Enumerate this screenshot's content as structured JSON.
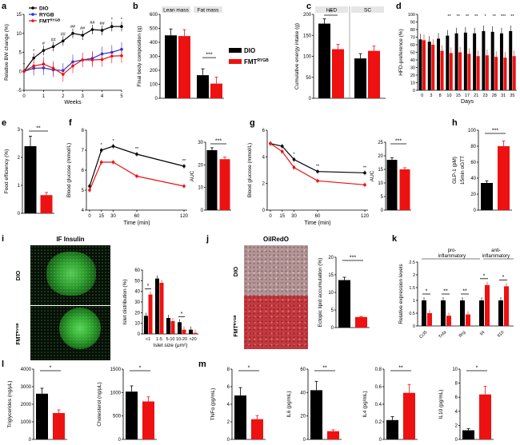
{
  "colors": {
    "dio": "#000000",
    "rygb": "#2233dd",
    "fmt": "#ee1111",
    "micro_dark": "#0a150a",
    "micro_green": "#3ec93e",
    "oil_bg": "#b0898a",
    "oil_red": "#b8252c"
  },
  "panel_letters": [
    "a",
    "b",
    "c",
    "d",
    "e",
    "f",
    "g",
    "h",
    "i",
    "j",
    "k",
    "l",
    "m"
  ],
  "sup": {
    "fmt": "RYGB"
  },
  "a": {
    "legend": [
      "DIO",
      "RYGB",
      "FMT"
    ],
    "ylabel": "Relative BW change (%)",
    "xlabel": "Weeks",
    "chart_data": {
      "type": "line",
      "x": [
        0,
        0.5,
        1,
        1.5,
        2,
        2.5,
        3,
        3.5,
        4,
        4.5,
        5
      ],
      "xlim": [
        0,
        5
      ],
      "ylim": [
        -5,
        15
      ],
      "yticks": [
        -5,
        0,
        5,
        10,
        15
      ],
      "xticks": [
        0,
        1,
        2,
        3,
        4,
        5
      ],
      "series": [
        {
          "name": "DIO",
          "values": [
            0,
            3.5,
            5.5,
            6.5,
            8,
            10,
            9.5,
            11,
            10.8,
            11.8,
            11.8
          ]
        },
        {
          "name": "RYGB",
          "values": [
            0,
            0.8,
            0.9,
            0.4,
            0.2,
            2.5,
            3.0,
            3.4,
            4.6,
            5.0,
            5.8
          ]
        },
        {
          "name": "FMT",
          "values": [
            0,
            1.4,
            1.9,
            0.8,
            -0.8,
            1.4,
            3.0,
            3.0,
            3.1,
            4.0,
            4.1
          ]
        }
      ],
      "annotations": [
        "*",
        "*",
        "#",
        "##",
        "##",
        "##",
        "##",
        "##",
        "##",
        "*",
        "*"
      ]
    }
  },
  "b": {
    "ylabel": "Final body composition (g)",
    "group_labels": [
      "Lean mass",
      "Fat mass"
    ],
    "legend": [
      "DIO",
      "FMT"
    ],
    "sig": "***",
    "chart_data": {
      "type": "bar",
      "categories": [
        "Lean mass",
        "Fat mass"
      ],
      "ylim": [
        0,
        600
      ],
      "yticks": [
        0,
        100,
        200,
        300,
        400,
        500,
        600
      ],
      "series": [
        {
          "name": "DIO",
          "values": [
            450,
            165
          ]
        },
        {
          "name": "FMT",
          "values": [
            445,
            105
          ]
        }
      ]
    }
  },
  "c": {
    "ylabel": "Cumulative energy intake (g)",
    "group_labels": [
      "HFD",
      "SC"
    ],
    "sig": "**",
    "chart_data": {
      "type": "bar",
      "categories": [
        "HFD",
        "SC"
      ],
      "ylim": [
        0,
        200
      ],
      "yticks": [
        0,
        50,
        100,
        150,
        200
      ],
      "series": [
        {
          "name": "DIO",
          "values": [
            178,
            95
          ]
        },
        {
          "name": "FMT",
          "values": [
            117,
            113
          ]
        }
      ]
    }
  },
  "d": {
    "ylabel": "HFD-preference (%)",
    "xlabel": "Days",
    "chart_data": {
      "type": "bar",
      "categories": [
        "0",
        "3",
        "8",
        "10",
        "15",
        "17",
        "21",
        "23",
        "28",
        "31",
        "35"
      ],
      "ylim": [
        0,
        100
      ],
      "yticks": [
        0,
        10,
        20,
        30,
        40,
        50,
        60,
        70,
        80,
        90,
        100
      ],
      "series": [
        {
          "name": "DIO",
          "values": [
            67,
            64,
            68,
            72,
            75,
            76,
            75,
            78,
            77,
            75,
            78
          ]
        },
        {
          "name": "FMT",
          "values": [
            66,
            60,
            52,
            49,
            50,
            48,
            45,
            46,
            44,
            43,
            45
          ]
        }
      ],
      "annotations": [
        "",
        "",
        "",
        "**",
        "**",
        "**",
        "**",
        "*",
        "**",
        "***",
        "**"
      ]
    }
  },
  "e": {
    "ylabel": "Food efficiency (%)",
    "sig": "**",
    "chart_data": {
      "type": "bar",
      "categories": [
        "DIO",
        "FMT"
      ],
      "ylim": [
        0,
        3
      ],
      "yticks": [
        0,
        1,
        2,
        3
      ],
      "values": [
        2.4,
        0.65
      ]
    }
  },
  "f": {
    "ylabel": "Blood glucose (mmol/L)",
    "xlabel": "Time (min)",
    "auc_label": "AUC",
    "auc_sig": "***",
    "chart_data": {
      "type": "line",
      "x": [
        0,
        15,
        30,
        60,
        120
      ],
      "xticks": [
        0,
        15,
        30,
        60,
        120
      ],
      "ylim": [
        4,
        8
      ],
      "yticks": [
        4,
        5,
        6,
        7,
        8
      ],
      "series": [
        {
          "name": "DIO",
          "values": [
            5.2,
            7.0,
            7.2,
            6.8,
            6.2
          ]
        },
        {
          "name": "FMT",
          "values": [
            5.0,
            6.4,
            6.4,
            5.7,
            5.2
          ]
        }
      ],
      "annotations": [
        "",
        "*",
        "*",
        "**",
        "**"
      ],
      "auc": {
        "ylim": [
          0,
          30
        ],
        "yticks": [
          0,
          10,
          20,
          30
        ],
        "values": [
          26.5,
          22.5
        ]
      }
    }
  },
  "g": {
    "ylabel": "Blood glucose (mmol/L)",
    "xlabel": "Time (min)",
    "auc_label": "AUC",
    "auc_sig": "***",
    "chart_data": {
      "type": "line",
      "x": [
        0,
        15,
        30,
        60,
        120
      ],
      "xticks": [
        0,
        15,
        30,
        60,
        120
      ],
      "ylim": [
        0,
        6
      ],
      "yticks": [
        0,
        2,
        4,
        6
      ],
      "series": [
        {
          "name": "DIO",
          "values": [
            5.0,
            4.8,
            3.8,
            2.9,
            2.8
          ]
        },
        {
          "name": "FMT",
          "values": [
            5.0,
            4.4,
            3.2,
            2.2,
            1.9
          ]
        }
      ],
      "annotations": [
        "",
        "",
        "*",
        "**",
        "**"
      ],
      "auc": {
        "ylim": [
          0,
          25
        ],
        "yticks": [
          0,
          5,
          10,
          15,
          20,
          25
        ],
        "values": [
          18.5,
          15.0
        ]
      }
    }
  },
  "h": {
    "ylabel1": "GLP-1 (pM)",
    "ylabel2": "15min oGTT",
    "sig": "***",
    "chart_data": {
      "type": "bar",
      "categories": [
        "DIO",
        "FMT"
      ],
      "ylim": [
        0,
        100
      ],
      "yticks": [
        0,
        20,
        40,
        60,
        80,
        100
      ],
      "values": [
        34,
        80
      ]
    }
  },
  "i": {
    "title": "IF Insulin",
    "label_dio": "DIO",
    "label_fmt": "FMT",
    "ylabel": "Islet distribution (%)",
    "xlabel": "Islet size (μm²)",
    "chart_data": {
      "type": "bar",
      "categories": [
        "<1",
        "1-5",
        "5-10",
        "10-20",
        ">20"
      ],
      "ylim": [
        0,
        60
      ],
      "yticks": [
        0,
        10,
        20,
        30,
        40,
        50,
        60
      ],
      "series": [
        {
          "name": "DIO",
          "values": [
            17,
            52,
            15,
            11,
            4
          ]
        },
        {
          "name": "FMT",
          "values": [
            37,
            48,
            12,
            4,
            1
          ]
        }
      ],
      "annotations": [
        "*",
        "",
        "",
        "*",
        ""
      ]
    }
  },
  "j": {
    "title": "OilRedO",
    "label_dio": "DIO",
    "label_fmt": "FMT",
    "ylabel": "Ectopic lipid accumulation (%)",
    "sig": "***",
    "chart_data": {
      "type": "bar",
      "categories": [
        "DIO",
        "FMT"
      ],
      "ylim": [
        0,
        20
      ],
      "yticks": [
        0,
        5,
        10,
        15,
        20
      ],
      "values": [
        13.5,
        3
      ]
    }
  },
  "k": {
    "ylabel": "Relative expression levels",
    "group1": "pro-inflammatory",
    "group1a": "pro-",
    "group1b": "inflammatory",
    "group2": "anti-inflammatory",
    "group2a": "anti-",
    "group2b": "inflammatory",
    "chart_data": {
      "type": "bar",
      "categories": [
        "Ccl5",
        "Tnfa",
        "Ifng",
        "Il4",
        "Il10"
      ],
      "ylim": [
        0,
        2.5
      ],
      "yticks": [
        0,
        0.5,
        1,
        1.5,
        2,
        2.5
      ],
      "series": [
        {
          "name": "DIO",
          "values": [
            1,
            1,
            1,
            1,
            1
          ]
        },
        {
          "name": "FMT",
          "values": [
            0.5,
            0.4,
            0.45,
            1.6,
            1.55
          ]
        }
      ],
      "annotations": [
        "*",
        "**",
        "**",
        "*",
        "*"
      ]
    }
  },
  "l": {
    "charts": [
      {
        "ylabel": "Triglycerides (ng/μL)",
        "sig": "*",
        "chart_data": {
          "type": "bar",
          "categories": [
            "DIO",
            "FMT"
          ],
          "ylim": [
            0,
            4000
          ],
          "yticks": [
            0,
            1000,
            2000,
            3000,
            4000
          ],
          "values": [
            2600,
            1500
          ]
        }
      },
      {
        "ylabel": "Cholesterol (ng/μL)",
        "sig": "*",
        "chart_data": {
          "type": "bar",
          "categories": [
            "DIO",
            "FMT"
          ],
          "ylim": [
            0,
            1500
          ],
          "yticks": [
            0,
            500,
            1000,
            1500
          ],
          "values": [
            1020,
            810
          ]
        }
      }
    ]
  },
  "m": {
    "charts": [
      {
        "ylabel": "TNFα (pg/mL)",
        "sig": "*",
        "chart_data": {
          "type": "bar",
          "categories": [
            "DIO",
            "FMT"
          ],
          "ylim": [
            0,
            8
          ],
          "yticks": [
            0,
            2,
            4,
            6,
            8
          ],
          "values": [
            5,
            2.3
          ]
        }
      },
      {
        "ylabel": "IL6 (pg/mL)",
        "sig": "**",
        "chart_data": {
          "type": "bar",
          "categories": [
            "DIO",
            "FMT"
          ],
          "ylim": [
            0,
            60
          ],
          "yticks": [
            0,
            20,
            40,
            60
          ],
          "values": [
            42,
            7
          ]
        }
      },
      {
        "ylabel": "IL4 (pg/mL)",
        "sig": "**",
        "chart_data": {
          "type": "bar",
          "categories": [
            "DIO",
            "FMT"
          ],
          "ylim": [
            0,
            0.8
          ],
          "yticks": [
            0,
            0.2,
            0.4,
            0.6,
            0.8
          ],
          "values": [
            0.22,
            0.53
          ]
        }
      },
      {
        "ylabel": "IL10 (pg/mL)",
        "sig": "*",
        "chart_data": {
          "type": "bar",
          "categories": [
            "DIO",
            "FMT"
          ],
          "ylim": [
            0,
            10
          ],
          "yticks": [
            0,
            2,
            4,
            6,
            8,
            10
          ],
          "values": [
            1.3,
            6.4
          ]
        }
      }
    ]
  }
}
